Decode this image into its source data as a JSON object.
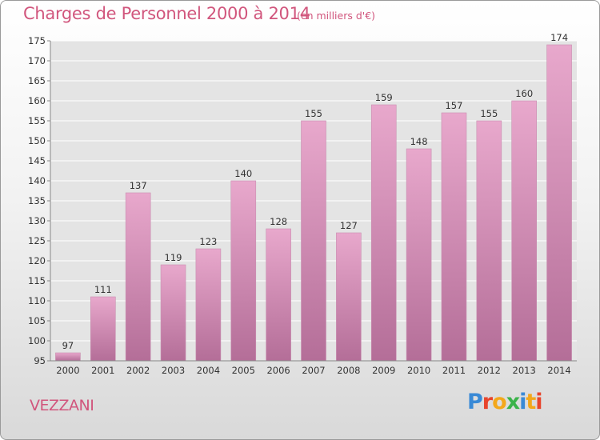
{
  "header": {
    "title": "Charges de Personnel 2000 à 2014",
    "subtitle": "(en milliers d'€)"
  },
  "footer": {
    "commune": "VEZZANI",
    "logo": {
      "text": "Proxiti",
      "letter_colors": [
        "#3a8ad6",
        "#e8452c",
        "#f3a81b",
        "#3bb34a",
        "#3a8ad6",
        "#f3a81b",
        "#e8452c"
      ]
    }
  },
  "colors": {
    "text": "#d1567d",
    "bar_light": "#e8a8cc",
    "bar_dark": "#b46e98",
    "grid": "#ffffff",
    "plot_background": "#e4e4e4"
  },
  "chart_data": {
    "type": "bar",
    "title": "Charges de Personnel 2000 à 2014",
    "subtitle": "(en milliers d'€)",
    "categories": [
      "2000",
      "2001",
      "2002",
      "2003",
      "2004",
      "2005",
      "2006",
      "2007",
      "2008",
      "2009",
      "2010",
      "2011",
      "2012",
      "2013",
      "2014"
    ],
    "values": [
      97,
      111,
      137,
      119,
      123,
      140,
      128,
      155,
      127,
      159,
      148,
      157,
      155,
      160,
      174
    ],
    "ylim": [
      95,
      175
    ],
    "yticks": [
      95,
      100,
      105,
      110,
      115,
      120,
      125,
      130,
      135,
      140,
      145,
      150,
      155,
      160,
      165,
      170,
      175
    ],
    "grid": true,
    "legend": "none"
  }
}
